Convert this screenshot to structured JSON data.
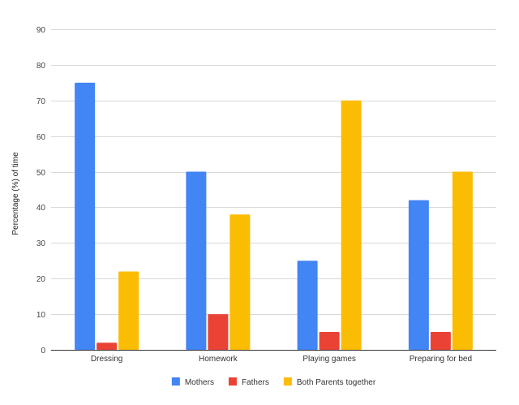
{
  "chart_data": {
    "type": "bar",
    "title": "",
    "xlabel": "",
    "ylabel": "Percentage (%) of time",
    "ylim": [
      0,
      90
    ],
    "yticks": [
      0,
      10,
      20,
      30,
      40,
      50,
      60,
      70,
      80,
      90
    ],
    "grid": true,
    "legend_position": "bottom",
    "categories": [
      "Dressing",
      "Homework",
      "Playing games",
      "Preparing for bed"
    ],
    "series": [
      {
        "name": "Mothers",
        "color": "#4285f4",
        "values": [
          75,
          50,
          25,
          42
        ]
      },
      {
        "name": "Fathers",
        "color": "#ea4335",
        "values": [
          2,
          10,
          5,
          5
        ]
      },
      {
        "name": "Both Parents together",
        "color": "#fbbc04",
        "values": [
          22,
          38,
          70,
          50
        ]
      }
    ]
  }
}
